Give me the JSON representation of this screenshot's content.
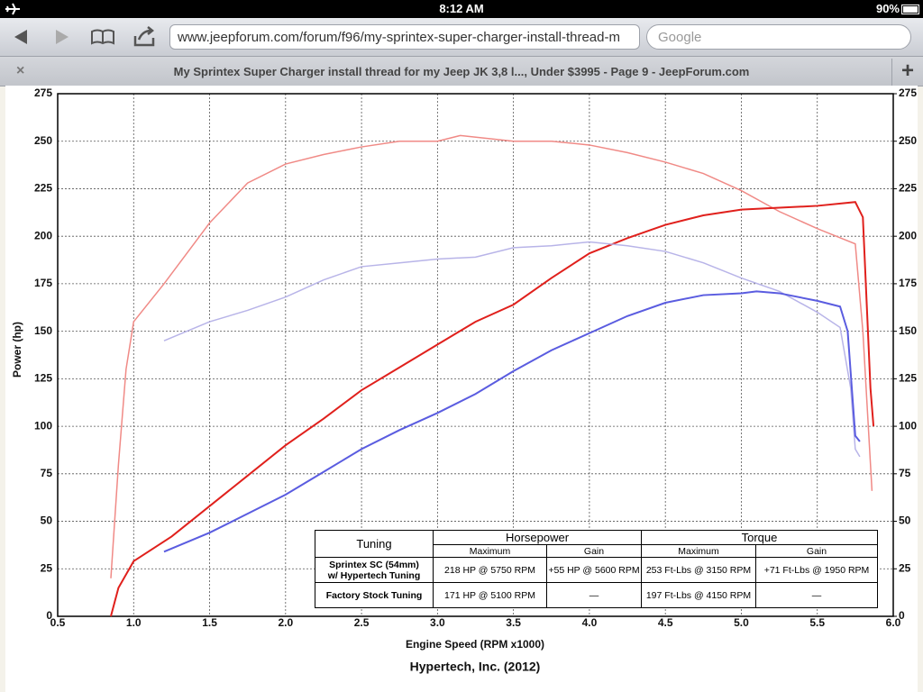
{
  "status_bar": {
    "time": "8:12 AM",
    "battery": "90%"
  },
  "toolbar": {
    "url": "www.jeepforum.com/forum/f96/my-sprintex-super-charger-install-thread-m",
    "search_placeholder": "Google"
  },
  "tab": {
    "close": "×",
    "title": "My Sprintex Super Charger install thread for my Jeep JK 3,8 l..., Under $3995 - Page 9 - JeepForum.com",
    "new_tab": "+"
  },
  "chart_data": {
    "type": "line",
    "xlabel": "Engine Speed (RPM x1000)",
    "ylabel": "Power (hp)",
    "footer": "Hypertech, Inc. (2012)",
    "xlim": [
      0.5,
      6.0
    ],
    "xticks": [
      0.5,
      {
        "value": 1,
        "label": "1.0"
      },
      1.5,
      {
        "value": 2,
        "label": "2.0"
      },
      2.5,
      {
        "value": 3,
        "label": "3.0"
      },
      3.5,
      {
        "value": 4,
        "label": "4.0"
      },
      4.5,
      {
        "value": 5,
        "label": "5.0"
      },
      5.5,
      {
        "value": 6,
        "label": "6.0"
      }
    ],
    "ylim": [
      0,
      275
    ],
    "yticks": [
      0,
      25,
      50,
      75,
      100,
      125,
      150,
      175,
      200,
      225,
      250,
      275
    ],
    "y2lim": [
      0,
      275
    ],
    "y2ticks": [
      0,
      25,
      50,
      75,
      100,
      125,
      150,
      175,
      200,
      225,
      250,
      275
    ],
    "grid": true,
    "series": [
      {
        "color": "#f08a86",
        "x": [
          0.85,
          0.9,
          0.95,
          1.0,
          1.2,
          1.5,
          1.75,
          2.0,
          2.25,
          2.5,
          2.75,
          3.0,
          3.15,
          3.5,
          3.75,
          4.0,
          4.25,
          4.5,
          4.75,
          5.0,
          5.25,
          5.5,
          5.75,
          5.8,
          5.86
        ],
        "values": [
          20,
          80,
          130,
          155,
          175,
          207,
          228,
          238,
          243,
          247,
          250,
          250,
          253,
          250,
          250,
          248,
          244,
          239,
          233,
          224,
          213,
          204,
          196,
          150,
          66
        ]
      },
      {
        "color": "#e0201c",
        "x": [
          0.85,
          0.9,
          1.0,
          1.25,
          1.5,
          1.75,
          2.0,
          2.25,
          2.5,
          2.75,
          3.0,
          3.25,
          3.5,
          3.75,
          4.0,
          4.25,
          4.5,
          4.75,
          5.0,
          5.25,
          5.5,
          5.75,
          5.8,
          5.85,
          5.87
        ],
        "values": [
          0,
          15,
          29,
          42,
          58,
          74,
          90,
          104,
          119,
          131,
          143,
          155,
          164,
          178,
          191,
          199,
          206,
          211,
          214,
          215,
          216,
          218,
          210,
          120,
          100
        ]
      },
      {
        "color": "#b8b4e8",
        "x": [
          1.2,
          1.5,
          1.75,
          2.0,
          2.25,
          2.5,
          2.75,
          3.0,
          3.25,
          3.5,
          3.75,
          4.0,
          4.25,
          4.5,
          4.75,
          5.0,
          5.25,
          5.5,
          5.65,
          5.72,
          5.75,
          5.78
        ],
        "values": [
          145,
          155,
          161,
          168,
          177,
          184,
          186,
          188,
          189,
          194,
          195,
          197,
          195,
          192,
          186,
          178,
          171,
          160,
          152,
          120,
          88,
          84
        ]
      },
      {
        "color": "#5a5ce0",
        "x": [
          1.2,
          1.5,
          1.75,
          2.0,
          2.25,
          2.5,
          2.75,
          3.0,
          3.25,
          3.5,
          3.75,
          4.0,
          4.25,
          4.5,
          4.75,
          5.0,
          5.1,
          5.25,
          5.5,
          5.65,
          5.7,
          5.75,
          5.78
        ],
        "values": [
          34,
          44,
          54,
          64,
          76,
          88,
          98,
          107,
          117,
          129,
          140,
          149,
          158,
          165,
          169,
          170,
          171,
          170,
          166,
          163,
          150,
          95,
          92
        ]
      }
    ],
    "table": {
      "tuning": "Tuning",
      "horsepower": "Horsepower",
      "torque": "Torque",
      "subheaders": [
        "Maximum",
        "Gain",
        "Maximum",
        "Gain"
      ],
      "rows": [
        {
          "label": [
            "Sprintex SC (54mm)",
            "w/ Hypertech Tuning"
          ],
          "cells": [
            "218 HP @ 5750 RPM",
            "+55 HP @ 5600 RPM",
            "253 Ft-Lbs @ 3150 RPM",
            "+71 Ft-Lbs @ 1950 RPM"
          ]
        },
        {
          "label": [
            "Factory Stock Tuning"
          ],
          "cells": [
            "171 HP @ 5100 RPM",
            "—",
            "197 Ft-Lbs @ 4150 RPM",
            "—"
          ]
        }
      ]
    }
  }
}
